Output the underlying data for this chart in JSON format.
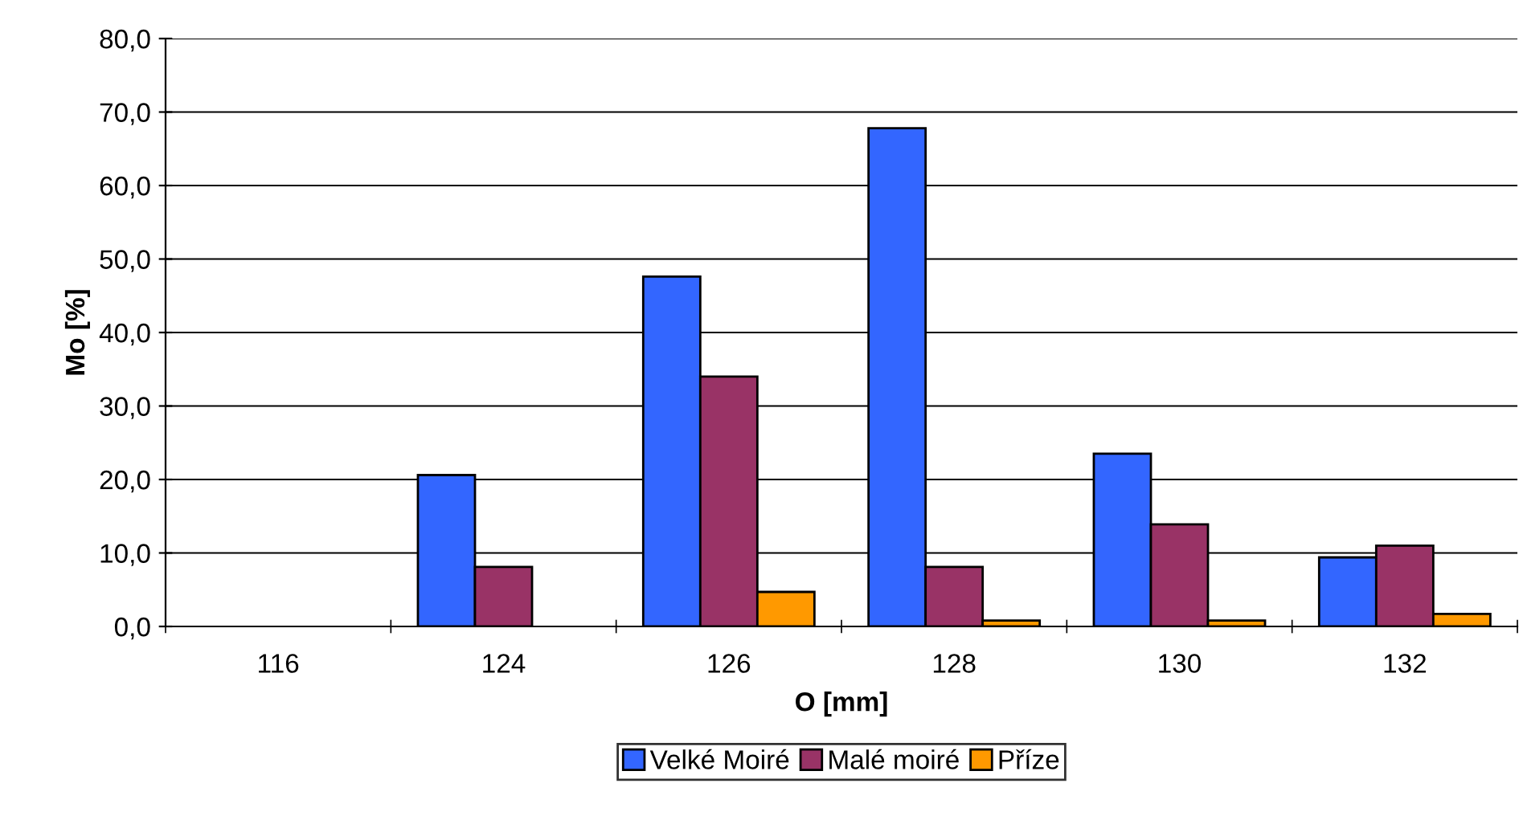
{
  "chart_data": {
    "type": "bar",
    "xlabel": "O [mm]",
    "ylabel": "Mo [%]",
    "categories": [
      "116",
      "124",
      "126",
      "128",
      "130",
      "132"
    ],
    "series": [
      {
        "name": "Velké Moiré",
        "color": "#3366ff",
        "values": [
          null,
          20.6,
          47.6,
          67.8,
          23.5,
          9.4
        ]
      },
      {
        "name": "Malé moiré",
        "color": "#993366",
        "values": [
          null,
          8.1,
          34.0,
          8.1,
          13.9,
          11.0
        ]
      },
      {
        "name": "Příze",
        "color": "#ff9900",
        "values": [
          null,
          null,
          4.7,
          0.8,
          0.8,
          1.7
        ]
      }
    ],
    "ylim": [
      0,
      80
    ],
    "yticks": [
      {
        "value": 0,
        "label": "0,0"
      },
      {
        "value": 10,
        "label": "10,0"
      },
      {
        "value": 20,
        "label": "20,0"
      },
      {
        "value": 30,
        "label": "30,0"
      },
      {
        "value": 40,
        "label": "40,0"
      },
      {
        "value": 50,
        "label": "50,0"
      },
      {
        "value": 60,
        "label": "60,0"
      },
      {
        "value": 70,
        "label": "70,0"
      },
      {
        "value": 80,
        "label": "80,0"
      }
    ],
    "grid": "y",
    "legend": "bottom"
  }
}
